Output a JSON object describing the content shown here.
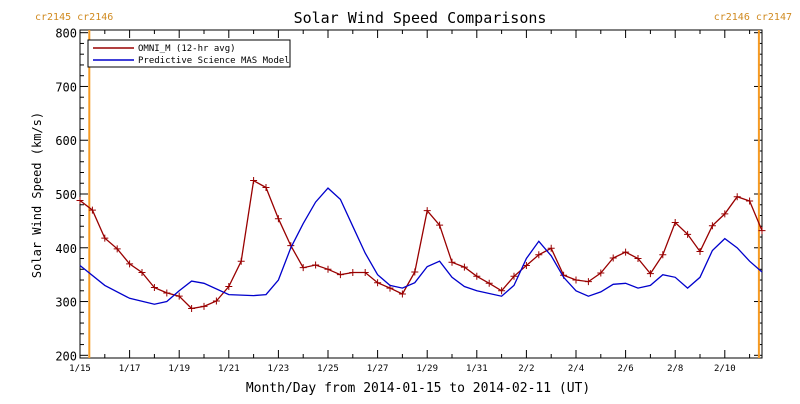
{
  "chart_data": {
    "type": "line",
    "title": "Solar Wind Speed Comparisons",
    "xlabel": "Month/Day from 2014-01-15 to 2014-02-11 (UT)",
    "ylabel": "Solar Wind Speed (km/s)",
    "xlim": [
      "2014-01-15",
      "2014-02-11T12:00"
    ],
    "ylim": [
      195,
      805
    ],
    "y_ticks": [
      200,
      300,
      400,
      500,
      600,
      700,
      800
    ],
    "x_tick_labels": [
      {
        "date": "2014-01-15",
        "label": "1/15"
      },
      {
        "date": "2014-01-17",
        "label": "1/17"
      },
      {
        "date": "2014-01-19",
        "label": "1/19"
      },
      {
        "date": "2014-01-21",
        "label": "1/21"
      },
      {
        "date": "2014-01-23",
        "label": "1/23"
      },
      {
        "date": "2014-01-25",
        "label": "1/25"
      },
      {
        "date": "2014-01-27",
        "label": "1/27"
      },
      {
        "date": "2014-01-29",
        "label": "1/29"
      },
      {
        "date": "2014-01-31",
        "label": "1/31"
      },
      {
        "date": "2014-02-02",
        "label": "2/2"
      },
      {
        "date": "2014-02-04",
        "label": "2/4"
      },
      {
        "date": "2014-02-06",
        "label": "2/6"
      },
      {
        "date": "2014-02-08",
        "label": "2/8"
      },
      {
        "date": "2014-02-10",
        "label": "2/10"
      }
    ],
    "legend_position": "top-left",
    "grid": false,
    "carrington_labels": [
      {
        "text": "cr2145 cr2146",
        "position": "top-left"
      },
      {
        "text": "cr2146 cr2147",
        "position": "top-right"
      }
    ],
    "carrington_markers": [
      "2014-01-15T09:00",
      "2014-02-11T09:00"
    ],
    "series": [
      {
        "name": "OMNI_M (12-hr avg)",
        "color": "#990000",
        "marker": "+",
        "points": [
          [
            "2014-01-15T00:00",
            488
          ],
          [
            "2014-01-15T12:00",
            470
          ],
          [
            "2014-01-16T00:00",
            418
          ],
          [
            "2014-01-16T12:00",
            398
          ],
          [
            "2014-01-17T00:00",
            370
          ],
          [
            "2014-01-17T12:00",
            354
          ],
          [
            "2014-01-18T00:00",
            326
          ],
          [
            "2014-01-18T12:00",
            316
          ],
          [
            "2014-01-19T00:00",
            310
          ],
          [
            "2014-01-19T12:00",
            287
          ],
          [
            "2014-01-20T00:00",
            291
          ],
          [
            "2014-01-20T12:00",
            301
          ],
          [
            "2014-01-21T00:00",
            328
          ],
          [
            "2014-01-21T12:00",
            375
          ],
          [
            "2014-01-22T00:00",
            525
          ],
          [
            "2014-01-22T12:00",
            512
          ],
          [
            "2014-01-23T00:00",
            454
          ],
          [
            "2014-01-23T12:00",
            404
          ],
          [
            "2014-01-24T00:00",
            363
          ],
          [
            "2014-01-24T12:00",
            368
          ],
          [
            "2014-01-25T00:00",
            360
          ],
          [
            "2014-01-25T12:00",
            350
          ],
          [
            "2014-01-26T00:00",
            354
          ],
          [
            "2014-01-26T12:00",
            354
          ],
          [
            "2014-01-27T00:00",
            335
          ],
          [
            "2014-01-27T12:00",
            325
          ],
          [
            "2014-01-28T00:00",
            314
          ],
          [
            "2014-01-28T12:00",
            355
          ],
          [
            "2014-01-29T00:00",
            469
          ],
          [
            "2014-01-29T12:00",
            442
          ],
          [
            "2014-01-30T00:00",
            373
          ],
          [
            "2014-01-30T12:00",
            364
          ],
          [
            "2014-01-31T00:00",
            347
          ],
          [
            "2014-01-31T12:00",
            334
          ],
          [
            "2014-02-01T00:00",
            320
          ],
          [
            "2014-02-01T12:00",
            347
          ],
          [
            "2014-02-02T00:00",
            367
          ],
          [
            "2014-02-02T12:00",
            387
          ],
          [
            "2014-02-03T00:00",
            399
          ],
          [
            "2014-02-03T12:00",
            349
          ],
          [
            "2014-02-04T00:00",
            340
          ],
          [
            "2014-02-04T12:00",
            337
          ],
          [
            "2014-02-05T00:00",
            353
          ],
          [
            "2014-02-05T12:00",
            381
          ],
          [
            "2014-02-06T00:00",
            392
          ],
          [
            "2014-02-06T12:00",
            380
          ],
          [
            "2014-02-07T00:00",
            352
          ],
          [
            "2014-02-07T12:00",
            387
          ],
          [
            "2014-02-08T00:00",
            447
          ],
          [
            "2014-02-08T12:00",
            425
          ],
          [
            "2014-02-09T00:00",
            393
          ],
          [
            "2014-02-09T12:00",
            441
          ],
          [
            "2014-02-10T00:00",
            463
          ],
          [
            "2014-02-10T12:00",
            495
          ],
          [
            "2014-02-11T00:00",
            487
          ],
          [
            "2014-02-11T12:00",
            432
          ]
        ]
      },
      {
        "name": "Predictive Science MAS Model",
        "color": "#0000cc",
        "marker": "",
        "points": [
          [
            "2014-01-15T00:00",
            367
          ],
          [
            "2014-01-16T00:00",
            330
          ],
          [
            "2014-01-17T00:00",
            306
          ],
          [
            "2014-01-18T00:00",
            295
          ],
          [
            "2014-01-18T12:00",
            300
          ],
          [
            "2014-01-19T00:00",
            320
          ],
          [
            "2014-01-19T12:00",
            338
          ],
          [
            "2014-01-20T00:00",
            334
          ],
          [
            "2014-01-21T00:00",
            313
          ],
          [
            "2014-01-22T00:00",
            311
          ],
          [
            "2014-01-22T12:00",
            313
          ],
          [
            "2014-01-23T00:00",
            340
          ],
          [
            "2014-01-23T12:00",
            400
          ],
          [
            "2014-01-24T00:00",
            445
          ],
          [
            "2014-01-24T12:00",
            485
          ],
          [
            "2014-01-25T00:00",
            511
          ],
          [
            "2014-01-25T12:00",
            490
          ],
          [
            "2014-01-26T00:00",
            440
          ],
          [
            "2014-01-26T12:00",
            390
          ],
          [
            "2014-01-27T00:00",
            350
          ],
          [
            "2014-01-27T12:00",
            330
          ],
          [
            "2014-01-28T00:00",
            325
          ],
          [
            "2014-01-28T12:00",
            335
          ],
          [
            "2014-01-29T00:00",
            365
          ],
          [
            "2014-01-29T12:00",
            375
          ],
          [
            "2014-01-30T00:00",
            345
          ],
          [
            "2014-01-30T12:00",
            328
          ],
          [
            "2014-01-31T00:00",
            320
          ],
          [
            "2014-02-01T00:00",
            310
          ],
          [
            "2014-02-01T12:00",
            330
          ],
          [
            "2014-02-02T00:00",
            380
          ],
          [
            "2014-02-02T12:00",
            412
          ],
          [
            "2014-02-03T00:00",
            385
          ],
          [
            "2014-02-03T12:00",
            345
          ],
          [
            "2014-02-04T00:00",
            320
          ],
          [
            "2014-02-04T12:00",
            310
          ],
          [
            "2014-02-05T00:00",
            318
          ],
          [
            "2014-02-05T12:00",
            332
          ],
          [
            "2014-02-06T00:00",
            334
          ],
          [
            "2014-02-06T12:00",
            325
          ],
          [
            "2014-02-07T00:00",
            330
          ],
          [
            "2014-02-07T12:00",
            350
          ],
          [
            "2014-02-08T00:00",
            345
          ],
          [
            "2014-02-08T12:00",
            325
          ],
          [
            "2014-02-09T00:00",
            345
          ],
          [
            "2014-02-09T12:00",
            395
          ],
          [
            "2014-02-10T00:00",
            417
          ],
          [
            "2014-02-10T12:00",
            400
          ],
          [
            "2014-02-11T00:00",
            375
          ],
          [
            "2014-02-11T12:00",
            355
          ]
        ]
      }
    ]
  }
}
